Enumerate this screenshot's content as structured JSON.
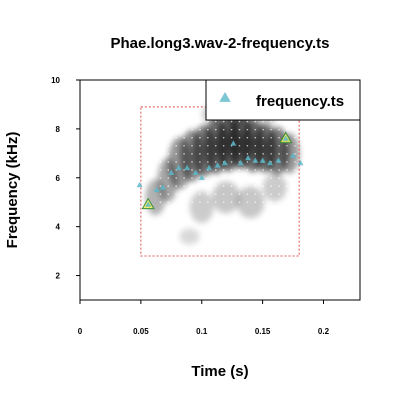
{
  "chart_data": {
    "type": "scatter",
    "title": "Phae.long3.wav-2-frequency.ts",
    "xlabel": "Time (s)",
    "ylabel": "Frequency (kHz)",
    "xlim": [
      0,
      0.23
    ],
    "ylim": [
      1,
      10
    ],
    "x_ticks": [
      0,
      0.05,
      0.1,
      0.15,
      0.2
    ],
    "x_tick_labels": [
      "0",
      "0.05",
      "0.1",
      "0.15",
      "0.2"
    ],
    "y_ticks": [
      2,
      4,
      6,
      8,
      10
    ],
    "y_tick_labels": [
      "2",
      "4",
      "6",
      "8",
      "10"
    ],
    "legend": {
      "position": "top-right",
      "entries": [
        "frequency.ts"
      ]
    },
    "series": [
      {
        "name": "frequency.ts",
        "color": "#5bb8c9",
        "marker": "triangle",
        "x": [
          0.049,
          0.056,
          0.063,
          0.068,
          0.075,
          0.081,
          0.088,
          0.095,
          0.1,
          0.106,
          0.113,
          0.119,
          0.126,
          0.132,
          0.138,
          0.144,
          0.15,
          0.156,
          0.163,
          0.169,
          0.175,
          0.181
        ],
        "y": [
          5.7,
          4.9,
          5.5,
          5.6,
          6.2,
          6.4,
          6.4,
          6.2,
          6.0,
          6.4,
          6.5,
          6.6,
          7.4,
          6.6,
          6.8,
          6.7,
          6.7,
          6.6,
          6.7,
          7.6,
          6.9,
          6.6
        ]
      }
    ],
    "highlight_points": [
      {
        "x": 0.056,
        "y": 4.9
      },
      {
        "x": 0.169,
        "y": 7.6
      }
    ],
    "selection_box": {
      "x": [
        0.05,
        0.18
      ],
      "y": [
        2.8,
        8.9
      ],
      "color": "#e05050",
      "style": "dotted"
    },
    "background": "spectrogram"
  }
}
